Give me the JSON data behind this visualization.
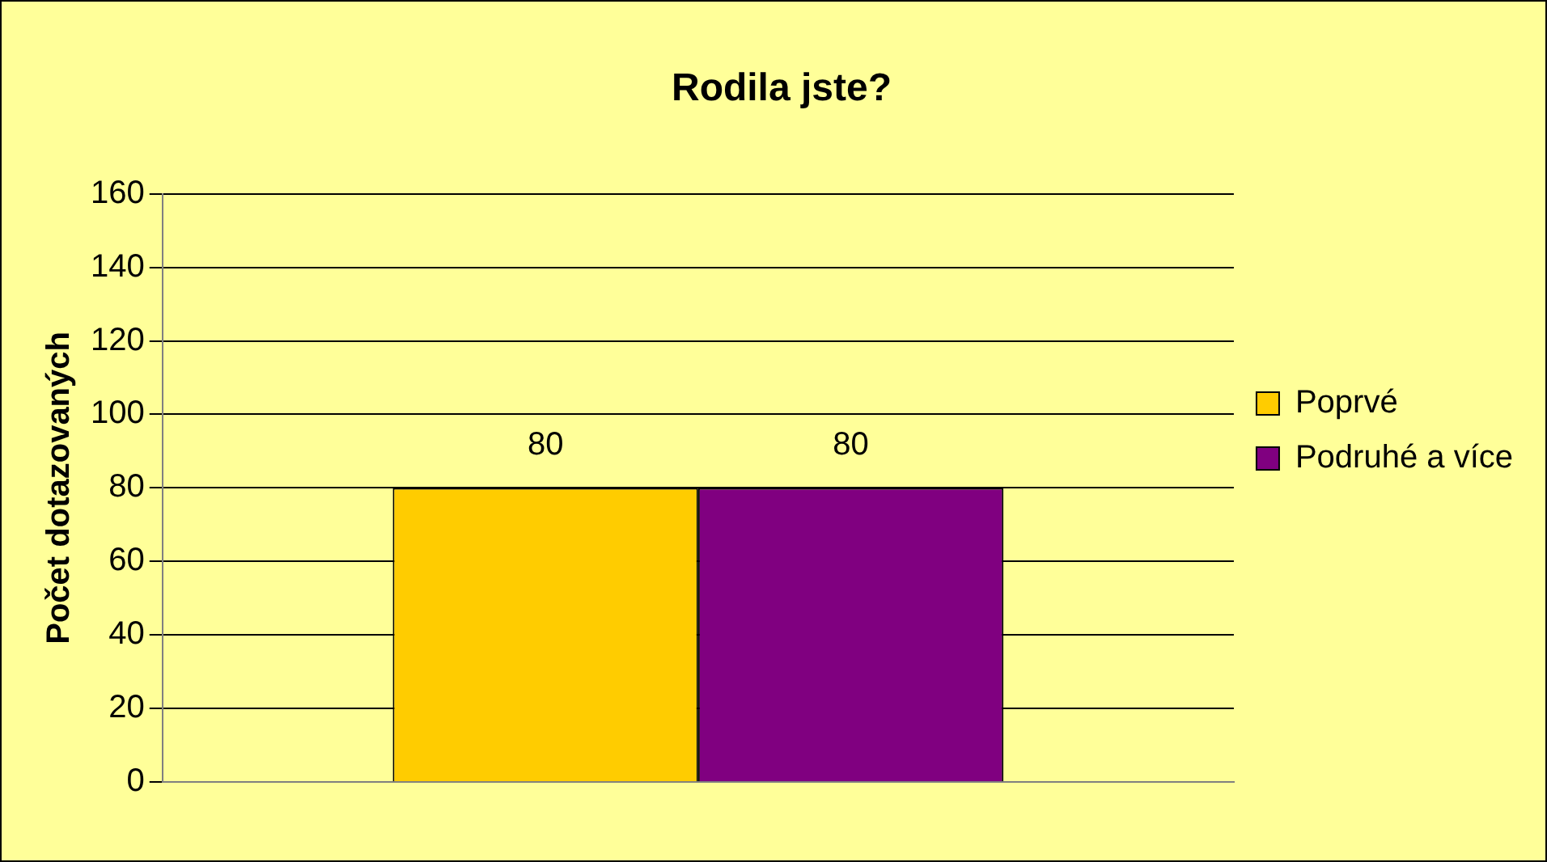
{
  "chart_data": {
    "type": "bar",
    "title": "Rodila jste?",
    "ylabel": "Počet dotazovaných",
    "categories": [
      null
    ],
    "series": [
      {
        "name": "Poprvé",
        "color": "#ffcc00",
        "values": [
          80
        ]
      },
      {
        "name": "Podruhé a více",
        "color": "#800080",
        "values": [
          80
        ]
      }
    ],
    "ylim": [
      0,
      160
    ],
    "yticks": [
      0,
      20,
      40,
      60,
      80,
      100,
      120,
      140,
      160
    ],
    "grid": "y",
    "legend": "right",
    "data_labels": true
  }
}
